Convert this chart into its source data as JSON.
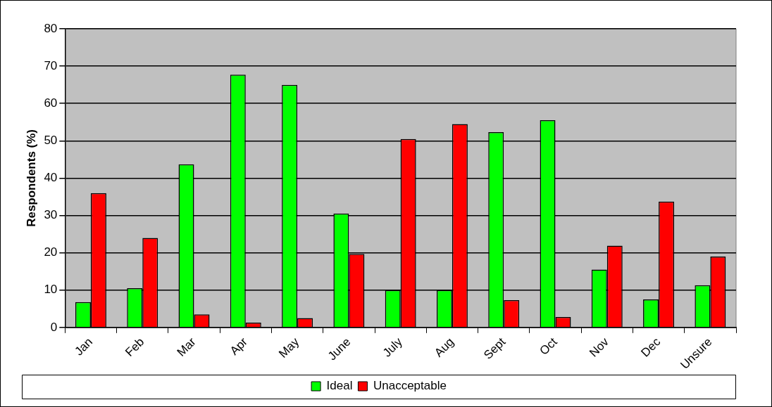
{
  "chart_data": {
    "type": "bar",
    "ylabel": "Respondents (%)",
    "categories": [
      "Jan",
      "Feb",
      "Mar",
      "Apr",
      "May",
      "June",
      "July",
      "Aug",
      "Sept",
      "Oct",
      "Nov",
      "Dec",
      "Unsure"
    ],
    "series": [
      {
        "name": "Ideal",
        "color": "#00ff00",
        "values": [
          6.8,
          10.5,
          43.7,
          67.7,
          65,
          30.5,
          10,
          10,
          52.3,
          55.5,
          15.5,
          7.5,
          11.3
        ]
      },
      {
        "name": "Unacceptable",
        "color": "#ff0000",
        "values": [
          36,
          24,
          3.5,
          1.3,
          2.5,
          19.7,
          50.5,
          54.5,
          7.3,
          2.8,
          21.9,
          33.7,
          19
        ]
      }
    ],
    "ylim": [
      0,
      80
    ],
    "yticks": [
      0,
      10,
      20,
      30,
      40,
      50,
      60,
      70,
      80
    ],
    "grid": "y",
    "legend": "bottom"
  }
}
